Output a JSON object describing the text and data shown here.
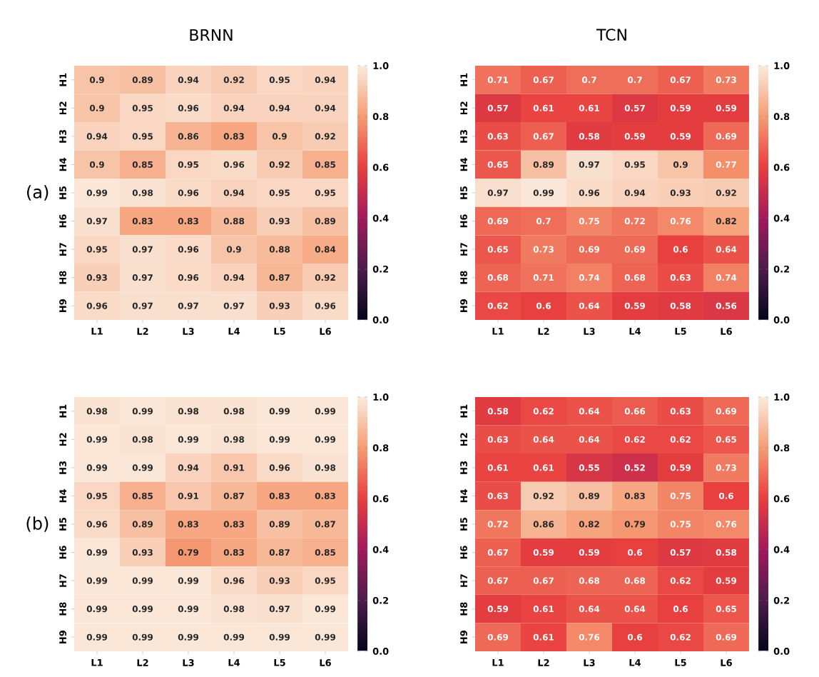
{
  "chart_data": [
    {
      "type": "heatmap",
      "title": "BRNN",
      "ylabel": "(a)",
      "categories": [
        "L1",
        "L2",
        "L3",
        "L4",
        "L5",
        "L6"
      ],
      "y_categories": [
        "H1",
        "H2",
        "H3",
        "H4",
        "H5",
        "H6",
        "H7",
        "H8",
        "H9"
      ],
      "cells": [
        [
          0.9,
          0.89,
          0.94,
          0.92,
          0.95,
          0.94
        ],
        [
          0.9,
          0.95,
          0.96,
          0.94,
          0.94,
          0.94
        ],
        [
          0.94,
          0.95,
          0.86,
          0.83,
          0.9,
          0.92
        ],
        [
          0.9,
          0.85,
          0.95,
          0.96,
          0.92,
          0.85
        ],
        [
          0.99,
          0.98,
          0.96,
          0.94,
          0.95,
          0.95
        ],
        [
          0.97,
          0.83,
          0.83,
          0.88,
          0.93,
          0.89
        ],
        [
          0.95,
          0.97,
          0.96,
          0.9,
          0.88,
          0.84
        ],
        [
          0.93,
          0.97,
          0.96,
          0.94,
          0.87,
          0.92
        ],
        [
          0.96,
          0.97,
          0.97,
          0.97,
          0.93,
          0.96
        ]
      ],
      "clim": [
        0.0,
        1.0
      ],
      "cticks": [
        {
          "value": 0,
          "label": "0.0"
        },
        {
          "value": 0.2,
          "label": "0.2"
        },
        {
          "value": 0.4,
          "label": "0.4"
        },
        {
          "value": 0.6,
          "label": "0.6"
        },
        {
          "value": 0.8,
          "label": "0.8"
        },
        {
          "value": 1,
          "label": "1.0"
        }
      ],
      "data_labels": true
    },
    {
      "type": "heatmap",
      "title": "TCN",
      "categories": [
        "L1",
        "L2",
        "L3",
        "L4",
        "L5",
        "L6"
      ],
      "y_categories": [
        "H1",
        "H2",
        "H3",
        "H4",
        "H5",
        "H6",
        "H7",
        "H8",
        "H9"
      ],
      "cells": [
        [
          0.71,
          0.67,
          0.7,
          0.7,
          0.67,
          0.73
        ],
        [
          0.57,
          0.61,
          0.61,
          0.57,
          0.59,
          0.59
        ],
        [
          0.63,
          0.67,
          0.58,
          0.59,
          0.59,
          0.69
        ],
        [
          0.65,
          0.89,
          0.97,
          0.95,
          0.9,
          0.77
        ],
        [
          0.97,
          0.99,
          0.96,
          0.94,
          0.93,
          0.92
        ],
        [
          0.69,
          0.7,
          0.75,
          0.72,
          0.76,
          0.82
        ],
        [
          0.65,
          0.73,
          0.69,
          0.69,
          0.6,
          0.64
        ],
        [
          0.68,
          0.71,
          0.74,
          0.68,
          0.63,
          0.74
        ],
        [
          0.62,
          0.6,
          0.64,
          0.59,
          0.58,
          0.56
        ]
      ],
      "clim": [
        0.0,
        1.0
      ],
      "cticks": [
        {
          "value": 0,
          "label": "0.0"
        },
        {
          "value": 0.2,
          "label": "0.2"
        },
        {
          "value": 0.4,
          "label": "0.4"
        },
        {
          "value": 0.6,
          "label": "0.6"
        },
        {
          "value": 0.8,
          "label": "0.8"
        },
        {
          "value": 1,
          "label": "1.0"
        }
      ],
      "data_labels": true
    },
    {
      "type": "heatmap",
      "ylabel": "(b)",
      "categories": [
        "L1",
        "L2",
        "L3",
        "L4",
        "L5",
        "L6"
      ],
      "y_categories": [
        "H1",
        "H2",
        "H3",
        "H4",
        "H5",
        "H6",
        "H7",
        "H8",
        "H9"
      ],
      "cells": [
        [
          0.98,
          0.99,
          0.98,
          0.98,
          0.99,
          0.99
        ],
        [
          0.99,
          0.98,
          0.99,
          0.98,
          0.99,
          0.99
        ],
        [
          0.99,
          0.99,
          0.94,
          0.91,
          0.96,
          0.98
        ],
        [
          0.95,
          0.85,
          0.91,
          0.87,
          0.83,
          0.83
        ],
        [
          0.96,
          0.89,
          0.83,
          0.83,
          0.89,
          0.87
        ],
        [
          0.99,
          0.93,
          0.79,
          0.83,
          0.87,
          0.85
        ],
        [
          0.99,
          0.99,
          0.99,
          0.96,
          0.93,
          0.95
        ],
        [
          0.99,
          0.99,
          0.99,
          0.98,
          0.97,
          0.99
        ],
        [
          0.99,
          0.99,
          0.99,
          0.99,
          0.99,
          0.99
        ]
      ],
      "clim": [
        0.0,
        1.0
      ],
      "cticks": [
        {
          "value": 0,
          "label": "0.0"
        },
        {
          "value": 0.2,
          "label": "0.2"
        },
        {
          "value": 0.4,
          "label": "0.4"
        },
        {
          "value": 0.6,
          "label": "0.6"
        },
        {
          "value": 0.8,
          "label": "0.8"
        },
        {
          "value": 1,
          "label": "1.0"
        }
      ],
      "data_labels": true
    },
    {
      "type": "heatmap",
      "categories": [
        "L1",
        "L2",
        "L3",
        "L4",
        "L5",
        "L6"
      ],
      "y_categories": [
        "H1",
        "H2",
        "H3",
        "H4",
        "H5",
        "H6",
        "H7",
        "H8",
        "H9"
      ],
      "cells": [
        [
          0.58,
          0.62,
          0.64,
          0.66,
          0.63,
          0.69
        ],
        [
          0.63,
          0.64,
          0.64,
          0.62,
          0.62,
          0.65
        ],
        [
          0.61,
          0.61,
          0.55,
          0.52,
          0.59,
          0.73
        ],
        [
          0.63,
          0.92,
          0.89,
          0.83,
          0.75,
          0.6
        ],
        [
          0.72,
          0.86,
          0.82,
          0.79,
          0.75,
          0.76
        ],
        [
          0.67,
          0.59,
          0.59,
          0.6,
          0.57,
          0.58
        ],
        [
          0.67,
          0.67,
          0.68,
          0.68,
          0.62,
          0.59
        ],
        [
          0.59,
          0.61,
          0.64,
          0.64,
          0.6,
          0.65
        ],
        [
          0.69,
          0.61,
          0.76,
          0.6,
          0.62,
          0.69
        ]
      ],
      "clim": [
        0.0,
        1.0
      ],
      "cticks": [
        {
          "value": 0,
          "label": "0.0"
        },
        {
          "value": 0.2,
          "label": "0.2"
        },
        {
          "value": 0.4,
          "label": "0.4"
        },
        {
          "value": 0.6,
          "label": "0.6"
        },
        {
          "value": 0.8,
          "label": "0.8"
        },
        {
          "value": 1,
          "label": "1.0"
        }
      ],
      "data_labels": true
    }
  ]
}
